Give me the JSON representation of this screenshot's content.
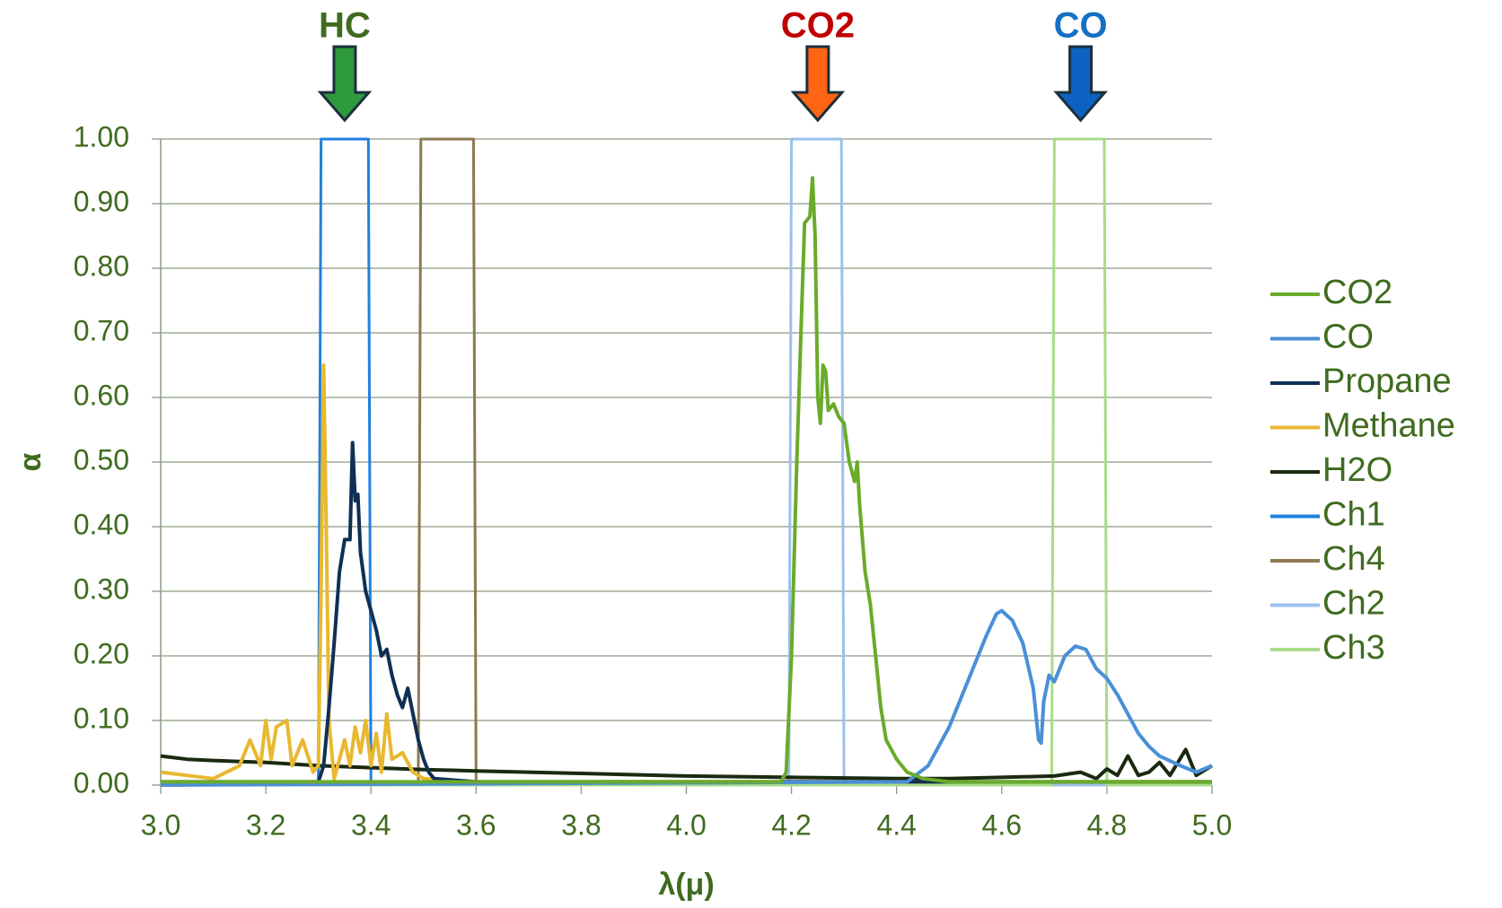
{
  "chart_data": {
    "type": "line",
    "xlabel": "λ(μ)",
    "ylabel": "α",
    "xlim": [
      3,
      5
    ],
    "ylim": [
      0,
      1
    ],
    "xticks": [
      {
        "value": 3,
        "label": "3.0"
      },
      3.2,
      3.4,
      3.6,
      3.8,
      {
        "value": 4,
        "label": "4.0"
      },
      4.2,
      4.4,
      4.6,
      4.8,
      {
        "value": 5,
        "label": "5.0"
      }
    ],
    "yticks": [
      {
        "value": 0,
        "label": "0.00"
      },
      {
        "value": 0.1,
        "label": "0.10"
      },
      {
        "value": 0.2,
        "label": "0.20"
      },
      {
        "value": 0.3,
        "label": "0.30"
      },
      {
        "value": 0.4,
        "label": "0.40"
      },
      {
        "value": 0.5,
        "label": "0.50"
      },
      {
        "value": 0.6,
        "label": "0.60"
      },
      {
        "value": 0.7,
        "label": "0.70"
      },
      {
        "value": 0.8,
        "label": "0.80"
      },
      {
        "value": 0.9,
        "label": "0.90"
      },
      {
        "value": 1,
        "label": "1.00"
      }
    ],
    "grid": true,
    "legend": "right",
    "annotations": [
      {
        "text": "HC",
        "x": 3.35,
        "color": "#2e9a3c",
        "text_color": "#3f6b1f"
      },
      {
        "text": "CO2",
        "x": 4.25,
        "color": "#ff6414",
        "text_color": "#c00000"
      },
      {
        "text": "CO",
        "x": 4.75,
        "color": "#0b62c0",
        "text_color": "#1470c4"
      }
    ],
    "series": [
      {
        "name": "CO2",
        "color": "#6aab2a",
        "x": [
          3.0,
          4.18,
          4.19,
          4.2,
          4.21,
          4.22,
          4.225,
          4.235,
          4.24,
          4.245,
          4.25,
          4.255,
          4.26,
          4.265,
          4.27,
          4.28,
          4.29,
          4.3,
          4.31,
          4.32,
          4.325,
          4.33,
          4.34,
          4.35,
          4.36,
          4.37,
          4.38,
          4.4,
          4.42,
          4.45,
          4.5,
          5.0
        ],
        "values": [
          0.005,
          0.005,
          0.02,
          0.2,
          0.5,
          0.75,
          0.87,
          0.88,
          0.94,
          0.85,
          0.6,
          0.56,
          0.65,
          0.64,
          0.58,
          0.59,
          0.57,
          0.56,
          0.5,
          0.47,
          0.5,
          0.43,
          0.33,
          0.28,
          0.2,
          0.12,
          0.07,
          0.04,
          0.02,
          0.01,
          0.005,
          0.005
        ]
      },
      {
        "name": "CO",
        "color": "#4a8fd8",
        "x": [
          3.0,
          4.42,
          4.46,
          4.5,
          4.54,
          4.57,
          4.59,
          4.6,
          4.62,
          4.64,
          4.66,
          4.67,
          4.675,
          4.68,
          4.69,
          4.7,
          4.72,
          4.74,
          4.76,
          4.78,
          4.8,
          4.82,
          4.84,
          4.86,
          4.88,
          4.9,
          4.94,
          4.97,
          5.0
        ],
        "values": [
          0.0,
          0.005,
          0.03,
          0.09,
          0.17,
          0.23,
          0.265,
          0.27,
          0.255,
          0.22,
          0.15,
          0.07,
          0.065,
          0.13,
          0.17,
          0.16,
          0.2,
          0.215,
          0.21,
          0.18,
          0.165,
          0.14,
          0.11,
          0.08,
          0.06,
          0.045,
          0.03,
          0.02,
          0.03
        ]
      },
      {
        "name": "Propane",
        "color": "#0f2f55",
        "x": [
          3.0,
          3.3,
          3.31,
          3.32,
          3.33,
          3.34,
          3.35,
          3.36,
          3.365,
          3.37,
          3.375,
          3.38,
          3.39,
          3.4,
          3.41,
          3.42,
          3.43,
          3.44,
          3.45,
          3.46,
          3.47,
          3.48,
          3.49,
          3.5,
          3.51,
          3.52,
          3.6,
          5.0
        ],
        "values": [
          0.005,
          0.005,
          0.03,
          0.12,
          0.22,
          0.33,
          0.38,
          0.38,
          0.53,
          0.44,
          0.45,
          0.36,
          0.3,
          0.27,
          0.24,
          0.2,
          0.21,
          0.17,
          0.14,
          0.12,
          0.15,
          0.11,
          0.07,
          0.04,
          0.02,
          0.01,
          0.005,
          0.005
        ]
      },
      {
        "name": "Methane",
        "color": "#e8b830",
        "x": [
          3.0,
          3.05,
          3.1,
          3.15,
          3.17,
          3.19,
          3.2,
          3.21,
          3.22,
          3.24,
          3.25,
          3.27,
          3.29,
          3.3,
          3.305,
          3.31,
          3.315,
          3.32,
          3.33,
          3.34,
          3.35,
          3.36,
          3.37,
          3.38,
          3.39,
          3.4,
          3.41,
          3.42,
          3.43,
          3.44,
          3.46,
          3.48,
          3.5,
          3.6,
          5.0
        ],
        "values": [
          0.02,
          0.015,
          0.01,
          0.03,
          0.07,
          0.03,
          0.1,
          0.04,
          0.09,
          0.1,
          0.03,
          0.07,
          0.02,
          0.03,
          0.3,
          0.65,
          0.4,
          0.1,
          0.01,
          0.04,
          0.07,
          0.03,
          0.09,
          0.05,
          0.1,
          0.03,
          0.08,
          0.02,
          0.11,
          0.04,
          0.05,
          0.02,
          0.01,
          0.005,
          0.005
        ]
      },
      {
        "name": "H2O",
        "color": "#1a2a10",
        "x": [
          3.0,
          3.05,
          3.1,
          3.2,
          3.3,
          3.4,
          3.5,
          3.6,
          3.8,
          4.0,
          4.2,
          4.4,
          4.5,
          4.6,
          4.7,
          4.75,
          4.78,
          4.8,
          4.82,
          4.84,
          4.86,
          4.88,
          4.9,
          4.92,
          4.95,
          4.97,
          5.0
        ],
        "values": [
          0.045,
          0.04,
          0.038,
          0.035,
          0.03,
          0.027,
          0.024,
          0.022,
          0.018,
          0.014,
          0.012,
          0.01,
          0.01,
          0.012,
          0.014,
          0.02,
          0.01,
          0.025,
          0.015,
          0.045,
          0.015,
          0.02,
          0.035,
          0.015,
          0.055,
          0.015,
          0.03
        ]
      },
      {
        "name": "Ch1",
        "color": "#2080e0",
        "x": [
          3.0,
          3.3,
          3.305,
          3.395,
          3.4,
          5.0
        ],
        "values": [
          0,
          0,
          1,
          1,
          0,
          0
        ]
      },
      {
        "name": "Ch4",
        "color": "#8c7a50",
        "x": [
          3.0,
          3.49,
          3.495,
          3.595,
          3.6,
          5.0
        ],
        "values": [
          0,
          0,
          1,
          1,
          0,
          0
        ]
      },
      {
        "name": "Ch2",
        "color": "#9cc0ec",
        "x": [
          3.0,
          4.195,
          4.2,
          4.295,
          4.3,
          5.0
        ],
        "values": [
          0,
          0,
          1,
          1,
          0,
          0
        ]
      },
      {
        "name": "Ch3",
        "color": "#a8dc88",
        "x": [
          3.0,
          4.695,
          4.7,
          4.795,
          4.8,
          5.0
        ],
        "values": [
          0,
          0,
          1,
          1,
          0,
          0
        ]
      }
    ]
  }
}
